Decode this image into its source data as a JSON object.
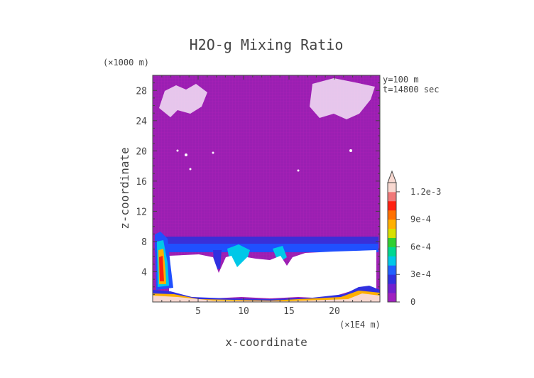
{
  "chart_data": {
    "type": "heatmap",
    "title": "H2O-g Mixing Ratio",
    "xlabel": "x-coordinate",
    "ylabel": "z-coordinate",
    "x_unit": "(×1E4 m)",
    "y_unit": "(×1000 m)",
    "annotations": [
      "y=100 m",
      "t=14800 sec"
    ],
    "xlim": [
      0,
      25
    ],
    "ylim": [
      0,
      30
    ],
    "x_ticks": [
      5,
      10,
      15,
      20
    ],
    "y_ticks": [
      4,
      8,
      12,
      16,
      20,
      24,
      28
    ],
    "colorbar": {
      "range": [
        0,
        0.0013
      ],
      "extend": "max",
      "ticks": [
        {
          "value": 0.0012,
          "label": "1.2e-3"
        },
        {
          "value": 0.0009,
          "label": "9e-4"
        },
        {
          "value": 0.0006,
          "label": "6e-4"
        },
        {
          "value": 0.0003,
          "label": "3e-4"
        },
        {
          "value": 0,
          "label": "0"
        }
      ],
      "levels": [
        {
          "value": 0,
          "color": "#a020c0"
        },
        {
          "value": 0.0001,
          "color": "#7020d0"
        },
        {
          "value": 0.0002,
          "color": "#3030e0"
        },
        {
          "value": 0.0003,
          "color": "#2060ff"
        },
        {
          "value": 0.0004,
          "color": "#00c8e8"
        },
        {
          "value": 0.0005,
          "color": "#00d890"
        },
        {
          "value": 0.0006,
          "color": "#30d030"
        },
        {
          "value": 0.0007,
          "color": "#d8e000"
        },
        {
          "value": 0.0008,
          "color": "#ffb000"
        },
        {
          "value": 0.0009,
          "color": "#ff7000"
        },
        {
          "value": 0.001,
          "color": "#ff2010"
        },
        {
          "value": 0.0011,
          "color": "#f07878"
        },
        {
          "value": 0.0012,
          "color": "#f8d8d0"
        }
      ]
    },
    "regions": {
      "background_value": 0,
      "moist_layer_z": [
        6.3,
        8.6
      ],
      "dry_core_z": [
        0.6,
        6.3
      ],
      "surface_layer_z": [
        0,
        0.8
      ],
      "left_column_x": [
        0.3,
        2.0
      ]
    }
  }
}
